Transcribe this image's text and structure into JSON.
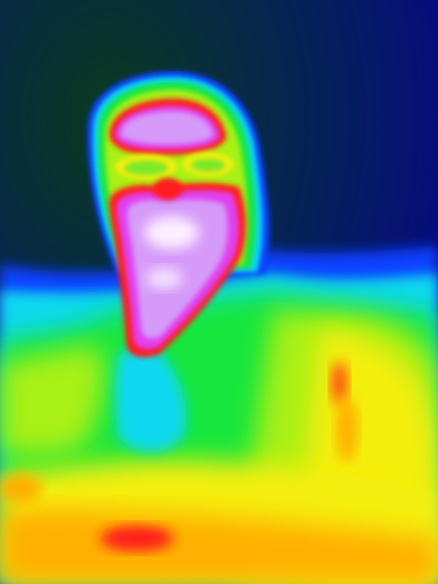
{
  "image": {
    "palette": {
      "navy": "#05058a",
      "dark_green": "#0a3a1e",
      "blue": "#1040ff",
      "cyan": "#10d8f0",
      "green": "#18e63c",
      "lime": "#a8f018",
      "yellow": "#f4ee10",
      "orange": "#ffb000",
      "red": "#ff1a1a",
      "magenta": "#e040f0",
      "violet": "#d69af8",
      "white": "#fbf0ff"
    }
  }
}
